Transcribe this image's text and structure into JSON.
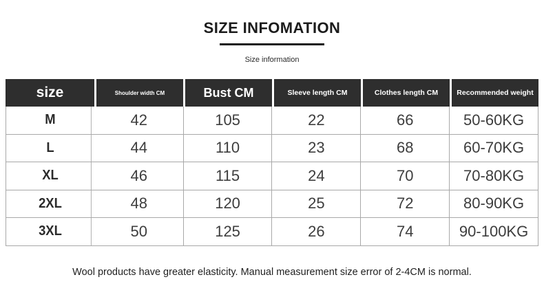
{
  "title": "SIZE INFOMATION",
  "subtitle": "Size information",
  "footer_note": "Wool products have greater elasticity. Manual measurement size error of 2-4CM is normal.",
  "chart_data": {
    "type": "table",
    "title": "SIZE INFOMATION",
    "columns": [
      "size",
      "Shoulder width CM",
      "Bust CM",
      "Sleeve length CM",
      "Clothes length CM",
      "Recommended weight"
    ],
    "rows": [
      [
        "M",
        "42",
        "105",
        "22",
        "66",
        "50-60KG"
      ],
      [
        "L",
        "44",
        "110",
        "23",
        "68",
        "60-70KG"
      ],
      [
        "XL",
        "46",
        "115",
        "24",
        "70",
        "70-80KG"
      ],
      [
        "2XL",
        "48",
        "120",
        "25",
        "72",
        "80-90KG"
      ],
      [
        "3XL",
        "50",
        "125",
        "26",
        "74",
        "90-100KG"
      ]
    ],
    "layout": {
      "header_bg": "#2e2e2e",
      "header_text": "#ffffff",
      "grid_line": "#a8a8a8",
      "body_text": "#3d3d3d",
      "grid": "on"
    }
  }
}
